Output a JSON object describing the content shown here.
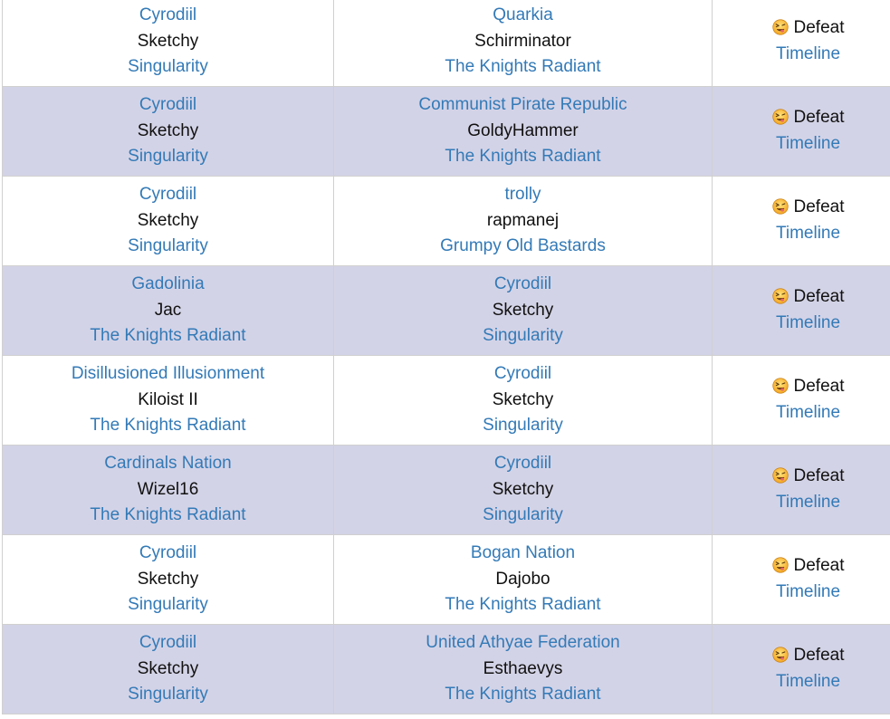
{
  "colors": {
    "link": "#337ab7",
    "text": "#111111",
    "alt_row_bg": "#d3d3e7",
    "border": "#d0d0d0"
  },
  "result_icon": "dizzy-face-emoji-icon",
  "rows": [
    {
      "attacker": {
        "nation": "Cyrodiil",
        "leader": "Sketchy",
        "alliance": "Singularity"
      },
      "defender": {
        "nation": "Quarkia",
        "leader": "Schirminator",
        "alliance": "The Knights Radiant"
      },
      "result": "Defeat",
      "timeline": "Timeline"
    },
    {
      "attacker": {
        "nation": "Cyrodiil",
        "leader": "Sketchy",
        "alliance": "Singularity"
      },
      "defender": {
        "nation": "Communist Pirate Republic",
        "leader": "GoldyHammer",
        "alliance": "The Knights Radiant"
      },
      "result": "Defeat",
      "timeline": "Timeline"
    },
    {
      "attacker": {
        "nation": "Cyrodiil",
        "leader": "Sketchy",
        "alliance": "Singularity"
      },
      "defender": {
        "nation": "trolly",
        "leader": "rapmanej",
        "alliance": "Grumpy Old Bastards"
      },
      "result": "Defeat",
      "timeline": "Timeline"
    },
    {
      "attacker": {
        "nation": "Gadolinia",
        "leader": "Jac",
        "alliance": "The Knights Radiant"
      },
      "defender": {
        "nation": "Cyrodiil",
        "leader": "Sketchy",
        "alliance": "Singularity"
      },
      "result": "Defeat",
      "timeline": "Timeline"
    },
    {
      "attacker": {
        "nation": "Disillusioned Illusionment",
        "leader": "Kiloist II",
        "alliance": "The Knights Radiant"
      },
      "defender": {
        "nation": "Cyrodiil",
        "leader": "Sketchy",
        "alliance": "Singularity"
      },
      "result": "Defeat",
      "timeline": "Timeline"
    },
    {
      "attacker": {
        "nation": "Cardinals Nation",
        "leader": "Wizel16",
        "alliance": "The Knights Radiant"
      },
      "defender": {
        "nation": "Cyrodiil",
        "leader": "Sketchy",
        "alliance": "Singularity"
      },
      "result": "Defeat",
      "timeline": "Timeline"
    },
    {
      "attacker": {
        "nation": "Cyrodiil",
        "leader": "Sketchy",
        "alliance": "Singularity"
      },
      "defender": {
        "nation": "Bogan Nation",
        "leader": "Dajobo",
        "alliance": "The Knights Radiant"
      },
      "result": "Defeat",
      "timeline": "Timeline"
    },
    {
      "attacker": {
        "nation": "Cyrodiil",
        "leader": "Sketchy",
        "alliance": "Singularity"
      },
      "defender": {
        "nation": "United Athyae Federation",
        "leader": "Esthaevys",
        "alliance": "The Knights Radiant"
      },
      "result": "Defeat",
      "timeline": "Timeline"
    }
  ]
}
